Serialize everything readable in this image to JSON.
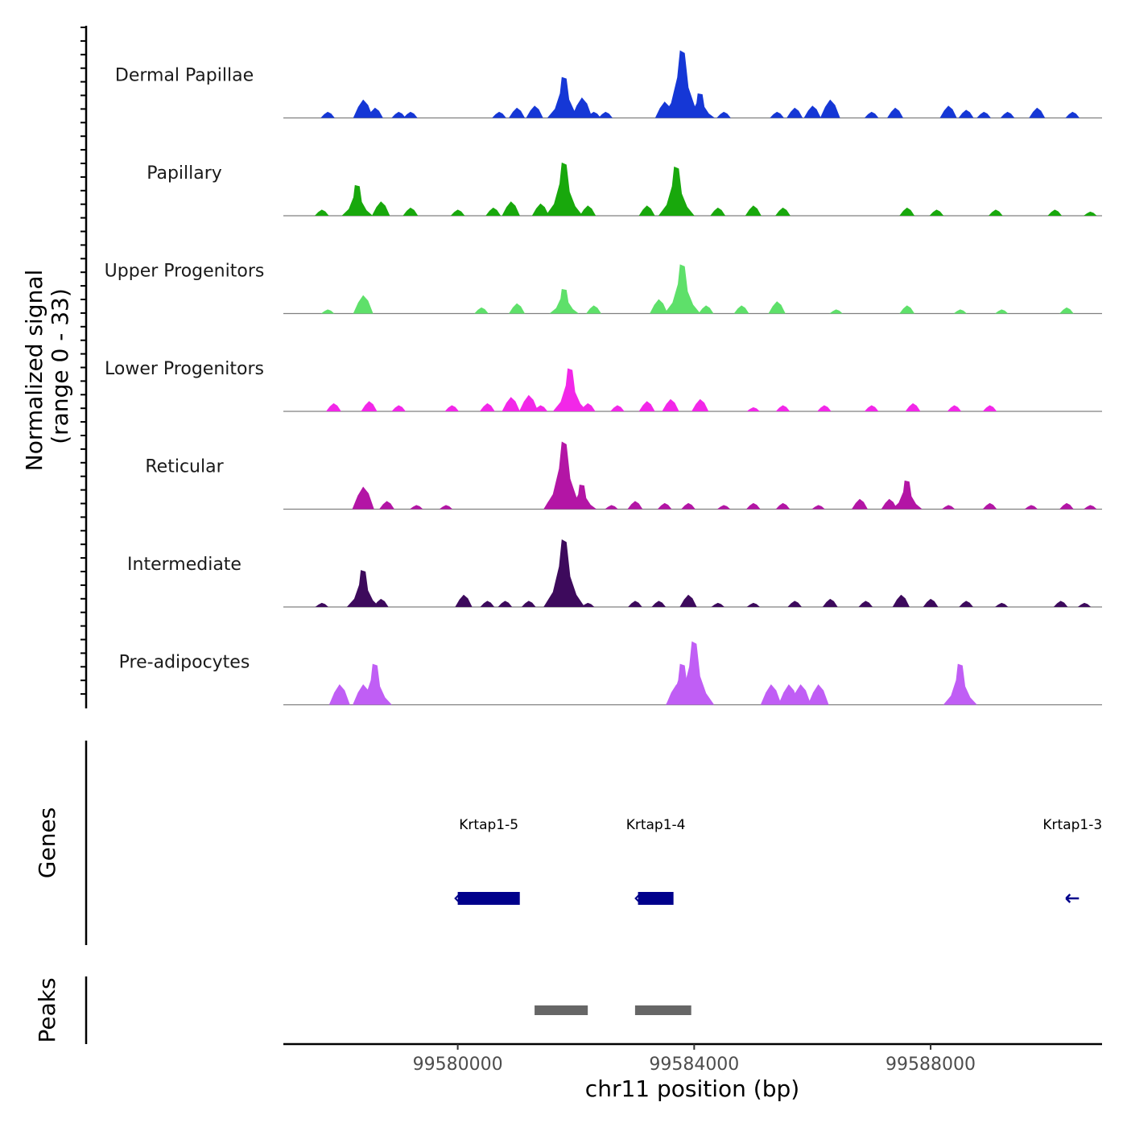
{
  "chart_data": {
    "type": "area",
    "title": "",
    "ylabel_line1": "Normalized signal",
    "ylabel_line2": "(range 0 - 33)",
    "yrange": [
      0,
      33
    ],
    "xlabel": "chr11 position (bp)",
    "xlim": [
      99577050,
      99590900
    ],
    "xticks": [
      99580000,
      99584000,
      99588000
    ],
    "xtick_labels": [
      "99580000",
      "99584000",
      "99588000"
    ],
    "tracks": [
      {
        "name": "Dermal Papillae",
        "color": "#1537d6",
        "peaks": [
          [
            99577800,
            3
          ],
          [
            99578400,
            9
          ],
          [
            99578600,
            5
          ],
          [
            99579000,
            3
          ],
          [
            99579200,
            3
          ],
          [
            99580700,
            3
          ],
          [
            99581000,
            5
          ],
          [
            99581300,
            6
          ],
          [
            99581800,
            20
          ],
          [
            99582100,
            10
          ],
          [
            99582300,
            3
          ],
          [
            99582500,
            3
          ],
          [
            99583500,
            8
          ],
          [
            99583800,
            33
          ],
          [
            99584100,
            12
          ],
          [
            99584500,
            3
          ],
          [
            99585400,
            3
          ],
          [
            99585700,
            5
          ],
          [
            99586000,
            6
          ],
          [
            99586300,
            9
          ],
          [
            99587000,
            3
          ],
          [
            99587400,
            5
          ],
          [
            99588300,
            6
          ],
          [
            99588600,
            4
          ],
          [
            99588900,
            3
          ],
          [
            99589300,
            3
          ],
          [
            99589800,
            5
          ],
          [
            99590400,
            3
          ]
        ]
      },
      {
        "name": "Papillary",
        "color": "#18a80c",
        "peaks": [
          [
            99577700,
            3
          ],
          [
            99578300,
            15
          ],
          [
            99578700,
            7
          ],
          [
            99579200,
            4
          ],
          [
            99580000,
            3
          ],
          [
            99580600,
            4
          ],
          [
            99580900,
            7
          ],
          [
            99581400,
            6
          ],
          [
            99581800,
            26
          ],
          [
            99582200,
            5
          ],
          [
            99583200,
            5
          ],
          [
            99583700,
            24
          ],
          [
            99584400,
            4
          ],
          [
            99585000,
            5
          ],
          [
            99585500,
            4
          ],
          [
            99587600,
            4
          ],
          [
            99588100,
            3
          ],
          [
            99589100,
            3
          ],
          [
            99590100,
            3
          ],
          [
            99590700,
            2
          ]
        ]
      },
      {
        "name": "Upper Progenitors",
        "color": "#5ee06a",
        "peaks": [
          [
            99577800,
            2
          ],
          [
            99578400,
            9
          ],
          [
            99580400,
            3
          ],
          [
            99581000,
            5
          ],
          [
            99581800,
            12
          ],
          [
            99582300,
            4
          ],
          [
            99583400,
            7
          ],
          [
            99583800,
            24
          ],
          [
            99584200,
            4
          ],
          [
            99584800,
            4
          ],
          [
            99585400,
            6
          ],
          [
            99586400,
            2
          ],
          [
            99587600,
            4
          ],
          [
            99588500,
            2
          ],
          [
            99589200,
            2
          ],
          [
            99590300,
            3
          ]
        ]
      },
      {
        "name": "Lower Progenitors",
        "color": "#f227e8",
        "peaks": [
          [
            99577900,
            4
          ],
          [
            99578500,
            5
          ],
          [
            99579000,
            3
          ],
          [
            99579900,
            3
          ],
          [
            99580500,
            4
          ],
          [
            99580900,
            7
          ],
          [
            99581200,
            8
          ],
          [
            99581400,
            3
          ],
          [
            99581900,
            21
          ],
          [
            99582200,
            4
          ],
          [
            99582700,
            3
          ],
          [
            99583200,
            5
          ],
          [
            99583600,
            6
          ],
          [
            99584100,
            6
          ],
          [
            99585000,
            2
          ],
          [
            99585500,
            3
          ],
          [
            99586200,
            3
          ],
          [
            99587000,
            3
          ],
          [
            99587700,
            4
          ],
          [
            99588400,
            3
          ],
          [
            99589000,
            3
          ]
        ]
      },
      {
        "name": "Reticular",
        "color": "#b315a5",
        "peaks": [
          [
            99578400,
            11
          ],
          [
            99578800,
            4
          ],
          [
            99579300,
            2
          ],
          [
            99579800,
            2
          ],
          [
            99581600,
            6
          ],
          [
            99581800,
            33
          ],
          [
            99582100,
            12
          ],
          [
            99582600,
            2
          ],
          [
            99583000,
            4
          ],
          [
            99583500,
            3
          ],
          [
            99583900,
            3
          ],
          [
            99584500,
            2
          ],
          [
            99585000,
            3
          ],
          [
            99585500,
            3
          ],
          [
            99586100,
            2
          ],
          [
            99586800,
            5
          ],
          [
            99587300,
            5
          ],
          [
            99587600,
            14
          ],
          [
            99588300,
            2
          ],
          [
            99589000,
            3
          ],
          [
            99589700,
            2
          ],
          [
            99590300,
            3
          ],
          [
            99590700,
            2
          ]
        ]
      },
      {
        "name": "Intermediate",
        "color": "#3d0a5c",
        "peaks": [
          [
            99577700,
            2
          ],
          [
            99578400,
            18
          ],
          [
            99578700,
            4
          ],
          [
            99580100,
            6
          ],
          [
            99580500,
            3
          ],
          [
            99580800,
            3
          ],
          [
            99581200,
            3
          ],
          [
            99581600,
            3
          ],
          [
            99581800,
            33
          ],
          [
            99582200,
            2
          ],
          [
            99583000,
            3
          ],
          [
            99583400,
            3
          ],
          [
            99583900,
            6
          ],
          [
            99584400,
            2
          ],
          [
            99585000,
            2
          ],
          [
            99585700,
            3
          ],
          [
            99586300,
            4
          ],
          [
            99586900,
            3
          ],
          [
            99587500,
            6
          ],
          [
            99588000,
            4
          ],
          [
            99588600,
            3
          ],
          [
            99589200,
            2
          ],
          [
            99590200,
            3
          ],
          [
            99590600,
            2
          ]
        ]
      },
      {
        "name": "Pre-adipocytes",
        "color": "#c05ef5",
        "peaks": [
          [
            99578000,
            10
          ],
          [
            99578400,
            10
          ],
          [
            99578600,
            20
          ],
          [
            99583700,
            10
          ],
          [
            99583800,
            20
          ],
          [
            99584000,
            31
          ],
          [
            99585300,
            10
          ],
          [
            99585600,
            10
          ],
          [
            99585800,
            10
          ],
          [
            99586100,
            10
          ],
          [
            99588500,
            20
          ]
        ]
      }
    ],
    "genes": [
      {
        "name": "Krtap1-5",
        "start": 99580000,
        "end": 99581050,
        "strand": "-"
      },
      {
        "name": "Krtap1-4",
        "start": 99583050,
        "end": 99583650,
        "strand": "-"
      },
      {
        "name": "Krtap1-3",
        "start": 99590400,
        "end": 99590400,
        "strand": "-"
      }
    ],
    "peaks_track": [
      {
        "start": 99581300,
        "end": 99582200
      },
      {
        "start": 99583000,
        "end": 99583950
      }
    ]
  },
  "panels": {
    "genes_label": "Genes",
    "peaks_label": "Peaks"
  },
  "colors": {
    "gene": "#00008b",
    "peak": "#666666",
    "baseline": "#808080"
  }
}
